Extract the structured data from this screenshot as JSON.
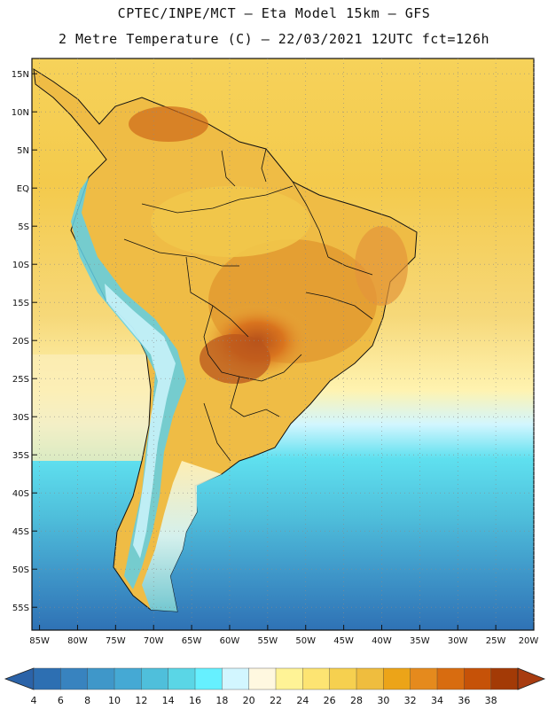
{
  "header": {
    "line1": "CPTEC/INPE/MCT —  Eta Model 15km — GFS",
    "line2": "2 Metre Temperature (C) — 22/03/2021 12UTC fct=126h"
  },
  "axes": {
    "lat_labels": [
      "15N",
      "10N",
      "5N",
      "EQ",
      "5S",
      "10S",
      "15S",
      "20S",
      "25S",
      "30S",
      "35S",
      "40S",
      "45S",
      "50S",
      "55S"
    ],
    "lon_labels": [
      "85W",
      "80W",
      "75W",
      "70W",
      "65W",
      "60W",
      "55W",
      "50W",
      "45W",
      "40W",
      "35W",
      "30W",
      "25W",
      "20W"
    ]
  },
  "colorbar": {
    "labels": [
      "4",
      "6",
      "8",
      "10",
      "12",
      "14",
      "16",
      "18",
      "20",
      "22",
      "24",
      "26",
      "28",
      "30",
      "32",
      "34",
      "36",
      "38"
    ],
    "colors": [
      "#2d6fb2",
      "#3883bf",
      "#3f97c9",
      "#45a9d4",
      "#4fbfdb",
      "#5ad6e6",
      "#66f0ff",
      "#d2f6ff",
      "#fff8e0",
      "#fff396",
      "#fde472",
      "#f6d04f",
      "#efbd3e",
      "#eca418",
      "#e58a1d",
      "#d86c10",
      "#c65208",
      "#a33a06"
    ],
    "low_color": "#2b63a8",
    "high_color": "#a83c10"
  },
  "colors": {
    "ocean_cold": "#2f72b5",
    "ocean_mid": "#52c3dd",
    "ocean_warm": "#f3c84c",
    "land_warm": "#eeb53e",
    "land_hot": "#d9741e",
    "border": "#111111"
  }
}
